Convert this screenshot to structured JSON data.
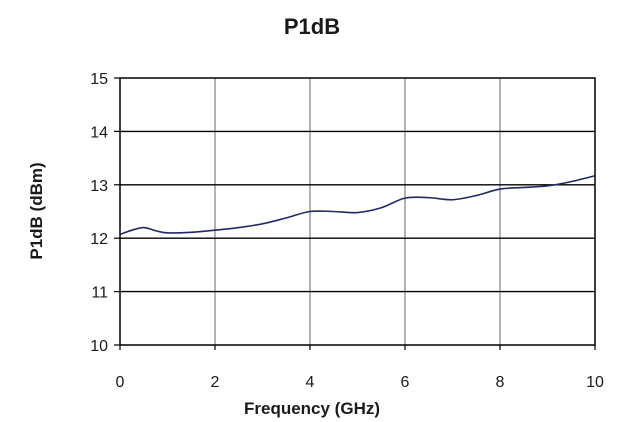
{
  "chart_data": {
    "type": "line",
    "title": "P1dB",
    "xlabel": "Frequency (GHz)",
    "ylabel": "P1dB (dBm)",
    "xlim": [
      0,
      10
    ],
    "ylim": [
      10,
      15
    ],
    "x_ticks": [
      "0",
      "2",
      "4",
      "6",
      "8",
      "10"
    ],
    "y_ticks": [
      "10",
      "11",
      "12",
      "13",
      "14",
      "15"
    ],
    "grid": true,
    "legend": false,
    "colors": {
      "line": "#1f2a66",
      "grid": "#808080",
      "axis": "#000000"
    },
    "series": [
      {
        "x": [
          0,
          0.25,
          0.5,
          0.75,
          1,
          1.5,
          2,
          2.5,
          3,
          3.5,
          4,
          4.5,
          5,
          5.5,
          6,
          6.5,
          7,
          7.5,
          8,
          8.5,
          9,
          9.5,
          10
        ],
        "y": [
          12.07,
          12.15,
          12.2,
          12.14,
          12.1,
          12.11,
          12.15,
          12.2,
          12.27,
          12.38,
          12.5,
          12.5,
          12.48,
          12.57,
          12.75,
          12.76,
          12.72,
          12.8,
          12.92,
          12.95,
          12.98,
          13.06,
          13.17
        ]
      }
    ]
  }
}
